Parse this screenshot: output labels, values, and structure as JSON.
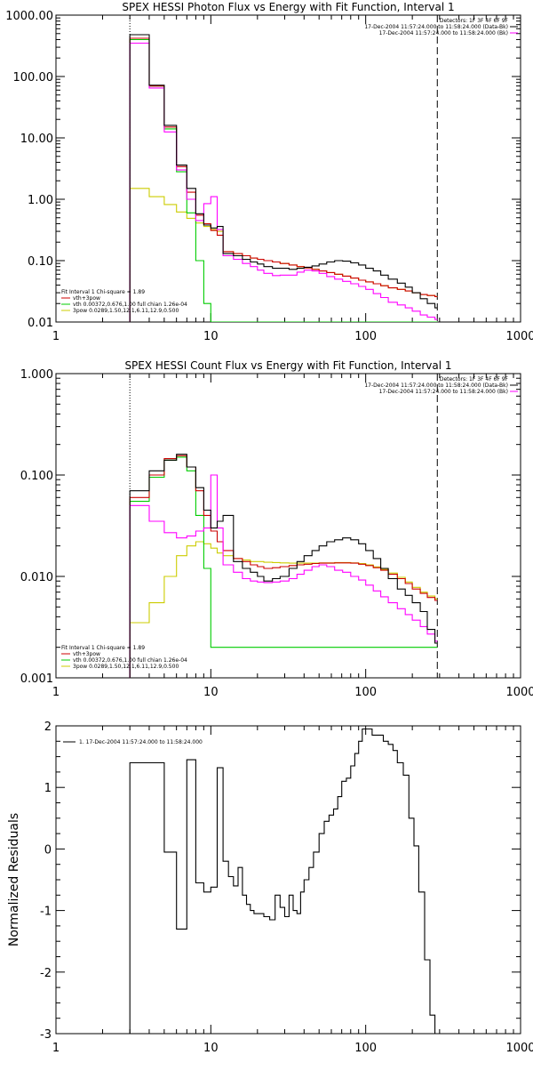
{
  "chart_data": [
    {
      "type": "line",
      "title": "SPEX HESSI Photon Flux vs Energy with Fit Function, Interval 1",
      "xlabel": "",
      "ylabel": "",
      "xscale": "log",
      "yscale": "log",
      "xlim": [
        1,
        1000
      ],
      "ylim": [
        0.01,
        1000
      ],
      "xticks": [
        "1",
        "10",
        "100",
        "1000"
      ],
      "yticks": [
        "0.01",
        "0.10",
        "1.00",
        "10.00",
        "100.00",
        "1000.00"
      ],
      "header": [
        "Detectors: 1F 3F 4F 6F 9F",
        "17-Dec-2004 11:57:24.000 to 11:58:24.000 (Data-Bk)",
        "17-Dec-2004 11:57:24.000 to 11:58:24.000 (Bk)"
      ],
      "fit_info": [
        "Fit Interval  1    Chi-square = 1.89",
        "vth+3pow",
        "vth 0.00372,0.676,1.00   full chian 1.26e-04",
        "3pow 0.0289,1.50,12.1,6.11,12.9,0.500"
      ],
      "vlines": [
        3,
        290
      ],
      "series": [
        {
          "name": "Data-Bk",
          "color": "#000000",
          "x": [
            3,
            4,
            5,
            6,
            7,
            8,
            9,
            10,
            11,
            12,
            14,
            16,
            18,
            20,
            22,
            25,
            28,
            32,
            36,
            40,
            45,
            50,
            56,
            63,
            71,
            80,
            90,
            100,
            112,
            125,
            140,
            160,
            180,
            200,
            225,
            250,
            280
          ],
          "y": [
            480,
            72,
            16,
            3.6,
            1.5,
            0.58,
            0.38,
            0.34,
            0.36,
            0.13,
            0.12,
            0.105,
            0.095,
            0.088,
            0.08,
            0.075,
            0.075,
            0.072,
            0.075,
            0.078,
            0.082,
            0.088,
            0.095,
            0.1,
            0.098,
            0.092,
            0.085,
            0.075,
            0.068,
            0.058,
            0.05,
            0.043,
            0.037,
            0.03,
            0.024,
            0.02,
            0.017
          ]
        },
        {
          "name": "Bk",
          "color": "#ff00ff",
          "x": [
            3,
            4,
            5,
            6,
            7,
            8,
            9,
            10,
            11,
            12,
            14,
            16,
            18,
            20,
            22,
            25,
            28,
            32,
            36,
            40,
            45,
            50,
            56,
            63,
            71,
            80,
            90,
            100,
            112,
            125,
            140,
            160,
            180,
            200,
            225,
            250,
            280
          ],
          "y": [
            350,
            65,
            12.5,
            3.0,
            1.0,
            0.45,
            0.85,
            1.1,
            0.32,
            0.12,
            0.105,
            0.09,
            0.08,
            0.07,
            0.062,
            0.057,
            0.058,
            0.058,
            0.065,
            0.07,
            0.068,
            0.062,
            0.055,
            0.05,
            0.046,
            0.042,
            0.038,
            0.034,
            0.029,
            0.025,
            0.021,
            0.019,
            0.017,
            0.015,
            0.013,
            0.012,
            0.011
          ]
        },
        {
          "name": "vth+3pow",
          "color": "#cc0000",
          "x": [
            3,
            4,
            5,
            6,
            7,
            8,
            9,
            10,
            11,
            12,
            14,
            16,
            18,
            20,
            22,
            25,
            28,
            32,
            36,
            40,
            45,
            50,
            56,
            63,
            71,
            80,
            90,
            100,
            112,
            125,
            140,
            160,
            180,
            200,
            225,
            250,
            280
          ],
          "y": [
            420,
            70,
            15,
            3.4,
            1.3,
            0.55,
            0.4,
            0.31,
            0.26,
            0.14,
            0.13,
            0.12,
            0.11,
            0.105,
            0.1,
            0.095,
            0.09,
            0.085,
            0.08,
            0.076,
            0.072,
            0.068,
            0.064,
            0.06,
            0.056,
            0.052,
            0.048,
            0.045,
            0.042,
            0.039,
            0.036,
            0.034,
            0.032,
            0.03,
            0.028,
            0.027,
            0.026
          ]
        },
        {
          "name": "vth",
          "color": "#00cc00",
          "x": [
            3,
            4,
            5,
            6,
            7,
            8,
            9,
            10
          ],
          "y": [
            400,
            70,
            14,
            2.8,
            0.6,
            0.1,
            0.02,
            0.006
          ]
        },
        {
          "name": "3pow",
          "color": "#cccc00",
          "x": [
            3,
            4,
            5,
            6,
            7,
            8,
            9,
            10,
            11,
            12,
            14,
            16,
            18,
            20,
            22,
            25,
            28,
            32,
            36,
            40,
            45,
            50,
            56,
            63,
            71,
            80,
            90,
            100,
            112,
            125,
            140,
            160,
            180,
            200,
            225,
            250,
            280
          ],
          "y": [
            1.5,
            1.1,
            0.82,
            0.62,
            0.49,
            0.41,
            0.36,
            0.32,
            0.3,
            0.14,
            0.13,
            0.12,
            0.11,
            0.105,
            0.1,
            0.095,
            0.09,
            0.085,
            0.08,
            0.076,
            0.072,
            0.068,
            0.064,
            0.06,
            0.056,
            0.052,
            0.048,
            0.045,
            0.042,
            0.039,
            0.036,
            0.034,
            0.032,
            0.03,
            0.028,
            0.027,
            0.026
          ]
        }
      ]
    },
    {
      "type": "line",
      "title": "SPEX HESSI Count Flux vs Energy with Fit Function, Interval 1",
      "xlabel": "",
      "ylabel": "",
      "xscale": "log",
      "yscale": "log",
      "xlim": [
        1,
        1000
      ],
      "ylim": [
        0.001,
        1.0
      ],
      "xticks": [
        "1",
        "10",
        "100",
        "1000"
      ],
      "yticks": [
        "0.001",
        "0.010",
        "0.100",
        "1.000"
      ],
      "header": [
        "Detectors: 1F 3F 4F 6F 9F",
        "17-Dec-2004 11:57:24.000 to 11:58:24.000 (Data-Bk)",
        "17-Dec-2004 11:57:24.000 to 11:58:24.000 (Bk)"
      ],
      "fit_info": [
        "Fit Interval  1    Chi-square = 1.89",
        "vth+3pow",
        "vth 0.00372,0.676,1.00   full chian 1.26e-04",
        "3pow 0.0289,1.50,12.1,6.11,12.9,0.500"
      ],
      "vlines": [
        3,
        290
      ],
      "series": [
        {
          "name": "Data-Bk",
          "color": "#000000",
          "x": [
            3,
            4,
            5,
            6,
            7,
            8,
            9,
            10,
            11,
            12,
            14,
            16,
            18,
            20,
            22,
            25,
            28,
            32,
            36,
            40,
            45,
            50,
            56,
            63,
            71,
            80,
            90,
            100,
            112,
            125,
            140,
            160,
            180,
            200,
            225,
            250,
            280
          ],
          "y": [
            0.07,
            0.11,
            0.14,
            0.16,
            0.12,
            0.075,
            0.045,
            0.03,
            0.035,
            0.04,
            0.014,
            0.012,
            0.011,
            0.01,
            0.009,
            0.0095,
            0.01,
            0.012,
            0.014,
            0.016,
            0.018,
            0.02,
            0.022,
            0.023,
            0.024,
            0.023,
            0.021,
            0.018,
            0.015,
            0.012,
            0.0095,
            0.0075,
            0.0065,
            0.0055,
            0.0045,
            0.003,
            0.0022
          ]
        },
        {
          "name": "Bk",
          "color": "#ff00ff",
          "x": [
            3,
            4,
            5,
            6,
            7,
            8,
            9,
            10,
            11,
            12,
            14,
            16,
            18,
            20,
            22,
            25,
            28,
            32,
            36,
            40,
            45,
            50,
            56,
            63,
            71,
            80,
            90,
            100,
            112,
            125,
            140,
            160,
            180,
            200,
            225,
            250,
            280
          ],
          "y": [
            0.05,
            0.035,
            0.027,
            0.024,
            0.025,
            0.028,
            0.03,
            0.1,
            0.03,
            0.013,
            0.011,
            0.0095,
            0.009,
            0.0088,
            0.0087,
            0.0088,
            0.009,
            0.0095,
            0.0105,
            0.0115,
            0.0125,
            0.013,
            0.0125,
            0.0115,
            0.011,
            0.01,
            0.0092,
            0.0082,
            0.0072,
            0.0063,
            0.0055,
            0.0048,
            0.0042,
            0.0037,
            0.0032,
            0.0027,
            0.0023
          ]
        },
        {
          "name": "vth+3pow",
          "color": "#cc0000",
          "x": [
            3,
            4,
            5,
            6,
            7,
            8,
            9,
            10,
            11,
            12,
            14,
            16,
            18,
            20,
            22,
            25,
            28,
            32,
            36,
            40,
            45,
            50,
            56,
            63,
            71,
            80,
            90,
            100,
            112,
            125,
            140,
            160,
            180,
            200,
            225,
            250,
            280
          ],
          "y": [
            0.06,
            0.1,
            0.145,
            0.155,
            0.12,
            0.07,
            0.04,
            0.028,
            0.022,
            0.018,
            0.015,
            0.014,
            0.013,
            0.0125,
            0.012,
            0.0122,
            0.0125,
            0.0128,
            0.013,
            0.0132,
            0.0134,
            0.0135,
            0.0135,
            0.0136,
            0.0136,
            0.0135,
            0.0132,
            0.0128,
            0.0122,
            0.0115,
            0.0105,
            0.0095,
            0.0085,
            0.0075,
            0.0068,
            0.0062,
            0.0058
          ]
        },
        {
          "name": "vth",
          "color": "#00cc00",
          "x": [
            3,
            4,
            5,
            6,
            7,
            8,
            9,
            10
          ],
          "y": [
            0.055,
            0.095,
            0.14,
            0.15,
            0.11,
            0.04,
            0.012,
            0.002
          ]
        },
        {
          "name": "3pow",
          "color": "#cccc00",
          "x": [
            3,
            4,
            5,
            6,
            7,
            8,
            9,
            10,
            11,
            12,
            14,
            16,
            18,
            20,
            22,
            25,
            28,
            32,
            36,
            40,
            45,
            50,
            56,
            63,
            71,
            80,
            90,
            100,
            112,
            125,
            140,
            160,
            180,
            200,
            225,
            250,
            280
          ],
          "y": [
            0.0035,
            0.0055,
            0.01,
            0.016,
            0.02,
            0.022,
            0.021,
            0.019,
            0.017,
            0.016,
            0.015,
            0.0145,
            0.014,
            0.014,
            0.0138,
            0.0137,
            0.0136,
            0.0135,
            0.0135,
            0.0135,
            0.0135,
            0.0136,
            0.0136,
            0.0137,
            0.0137,
            0.0136,
            0.0134,
            0.013,
            0.0124,
            0.0117,
            0.0108,
            0.0098,
            0.0088,
            0.0078,
            0.007,
            0.0064,
            0.006
          ]
        }
      ]
    },
    {
      "type": "line",
      "title": "",
      "xlabel": "",
      "ylabel": "Normalized Residuals",
      "xscale": "log",
      "yscale": "linear",
      "xlim": [
        1,
        1000
      ],
      "ylim": [
        -3,
        2
      ],
      "xticks": [
        "1",
        "10",
        "100",
        "1000"
      ],
      "yticks": [
        "-3",
        "-2",
        "-1",
        "0",
        "1",
        "2"
      ],
      "legend": "1. 17-Dec-2004 11:57:24.000 to 11:58:24.000",
      "legend_position": "top-left",
      "series": [
        {
          "name": "1. 17-Dec-2004 11:57:24.000 to 11:58:24.000",
          "color": "#000000",
          "x": [
            3,
            4,
            5,
            6,
            7,
            8,
            9,
            10,
            11,
            12,
            13,
            14,
            15,
            16,
            17,
            18,
            19,
            20,
            22,
            24,
            26,
            28,
            30,
            32,
            34,
            36,
            38,
            40,
            43,
            46,
            50,
            54,
            58,
            62,
            66,
            70,
            75,
            80,
            85,
            90,
            95,
            100,
            110,
            120,
            130,
            140,
            150,
            160,
            175,
            190,
            205,
            220,
            240,
            260,
            280
          ],
          "y": [
            1.4,
            1.4,
            -0.05,
            -1.3,
            1.45,
            -0.55,
            -0.7,
            -0.62,
            1.32,
            -0.2,
            -0.45,
            -0.6,
            -0.3,
            -0.75,
            -0.9,
            -1.0,
            -1.05,
            -1.05,
            -1.1,
            -1.15,
            -0.75,
            -0.95,
            -1.1,
            -0.75,
            -1.0,
            -1.05,
            -0.7,
            -0.5,
            -0.3,
            -0.05,
            0.25,
            0.45,
            0.55,
            0.65,
            0.85,
            1.1,
            1.15,
            1.35,
            1.55,
            1.75,
            1.95,
            1.95,
            1.85,
            1.85,
            1.75,
            1.7,
            1.6,
            1.4,
            1.2,
            0.5,
            0.05,
            -0.7,
            -1.8,
            -2.7,
            -3.0
          ]
        }
      ]
    }
  ]
}
